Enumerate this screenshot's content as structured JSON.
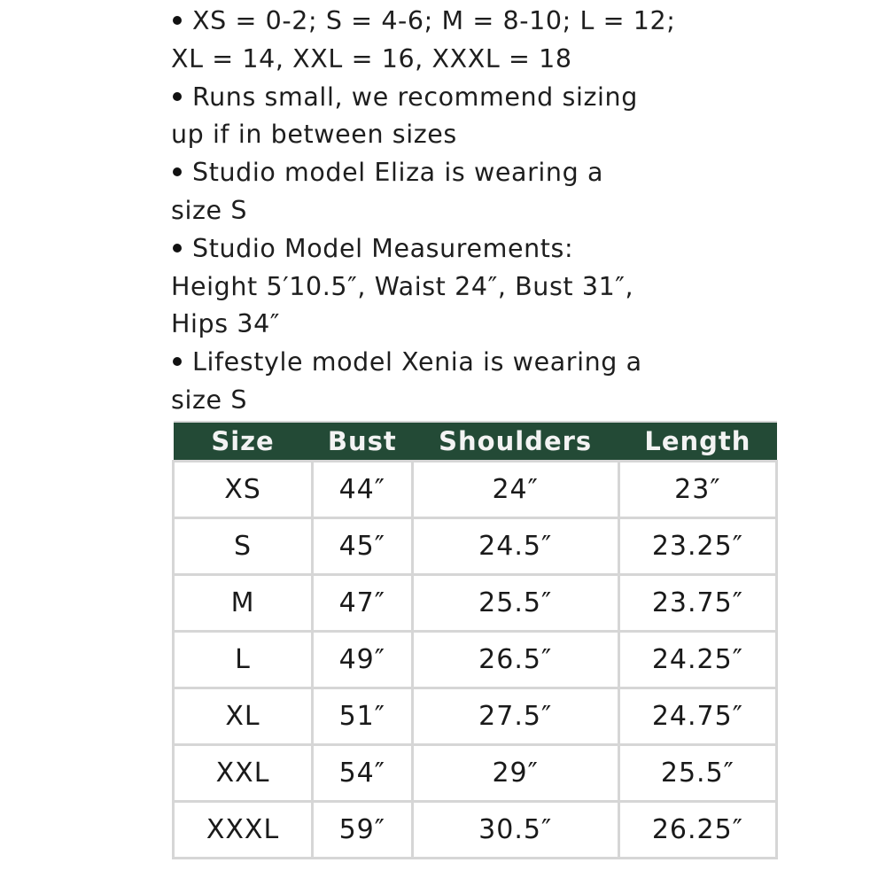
{
  "notes": [
    {
      "lines": [
        "XS = 0-2; S = 4-6; M = 8-10; L = 12;",
        "XL = 14, XXL = 16, XXXL = 18"
      ]
    },
    {
      "lines": [
        "Runs small, we recommend sizing",
        "up if in between sizes"
      ]
    },
    {
      "lines": [
        "Studio model Eliza is wearing a",
        "size S"
      ]
    },
    {
      "lines": [
        "Studio Model Measurements:",
        "Height 5′10.5″, Waist 24″, Bust 31″,",
        "Hips 34″"
      ]
    },
    {
      "lines": [
        "Lifestyle model Xenia is wearing a",
        "size S"
      ]
    }
  ],
  "size_table": {
    "header_color": "#234a36",
    "headers": [
      "Size",
      "Bust",
      "Shoulders",
      "Length"
    ],
    "rows": [
      [
        "XS",
        "44″",
        "24″",
        "23″"
      ],
      [
        "S",
        "45″",
        "24.5″",
        "23.25″"
      ],
      [
        "M",
        "47″",
        "25.5″",
        "23.75″"
      ],
      [
        "L",
        "49″",
        "26.5″",
        "24.25″"
      ],
      [
        "XL",
        "51″",
        "27.5″",
        "24.75″"
      ],
      [
        "XXL",
        "54″",
        "29″",
        "25.5″"
      ],
      [
        "XXXL",
        "59″",
        "30.5″",
        "26.25″"
      ]
    ]
  }
}
